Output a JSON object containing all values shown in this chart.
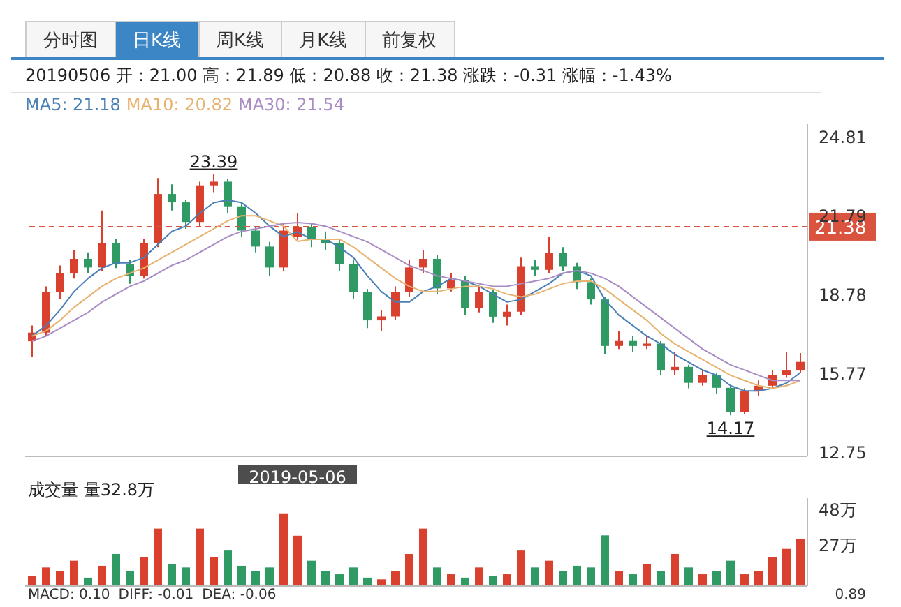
{
  "chart_data": [
    {
      "type": "candlestick",
      "subtitle": "20190506 开：21.00 高：21.89 低：20.88 收：21.38 涨跌：-0.31 涨幅：-1.43%",
      "annotations": [
        "分时图",
        "日K线",
        "周K线",
        "月K线",
        "前复权",
        {
          "text": "23.39",
          "y": 23.39
        },
        {
          "text": "14.17",
          "y": 14.17
        }
      ],
      "categories": [
        null,
        null,
        null,
        null,
        null,
        null,
        null,
        null,
        null,
        null,
        null,
        null,
        null,
        null,
        null,
        null,
        null,
        null,
        null,
        "2019-05-06",
        null,
        null,
        null,
        null,
        null,
        null,
        null,
        null,
        null,
        null,
        null,
        null,
        null,
        null,
        null,
        null,
        null,
        null,
        null,
        null,
        null,
        null,
        null,
        null,
        null,
        null,
        null,
        null,
        null,
        null,
        null,
        null,
        null,
        null,
        null,
        null
      ],
      "ohlc": [
        [
          17.0,
          17.6,
          16.4,
          17.33
        ],
        [
          17.33,
          19.1,
          17.2,
          18.88
        ],
        [
          18.88,
          19.9,
          18.6,
          19.6
        ],
        [
          19.6,
          20.5,
          19.4,
          20.15
        ],
        [
          20.15,
          20.4,
          19.6,
          19.82
        ],
        [
          19.82,
          22.0,
          19.7,
          20.76
        ],
        [
          20.76,
          20.9,
          19.8,
          19.96
        ],
        [
          19.96,
          20.1,
          19.2,
          19.49
        ],
        [
          19.49,
          20.9,
          19.4,
          20.76
        ],
        [
          20.76,
          23.24,
          20.6,
          22.63
        ],
        [
          22.63,
          23.0,
          22.0,
          22.31
        ],
        [
          22.31,
          22.4,
          21.3,
          21.56
        ],
        [
          21.56,
          23.1,
          21.4,
          22.96
        ],
        [
          22.96,
          23.39,
          22.7,
          23.1
        ],
        [
          23.1,
          23.2,
          21.9,
          22.16
        ],
        [
          22.16,
          22.3,
          21.0,
          21.23
        ],
        [
          21.23,
          21.4,
          20.4,
          20.62
        ],
        [
          20.62,
          20.8,
          19.5,
          19.82
        ],
        [
          19.82,
          21.5,
          19.7,
          21.23
        ],
        [
          21.0,
          21.89,
          20.88,
          21.38
        ],
        [
          21.38,
          21.5,
          20.6,
          20.9
        ],
        [
          20.9,
          21.2,
          20.5,
          20.76
        ],
        [
          20.76,
          20.9,
          19.7,
          19.96
        ],
        [
          19.96,
          20.1,
          18.6,
          18.88
        ],
        [
          18.88,
          19.0,
          17.5,
          17.8
        ],
        [
          17.8,
          18.2,
          17.4,
          17.95
        ],
        [
          17.95,
          19.1,
          17.8,
          18.88
        ],
        [
          18.88,
          20.1,
          18.7,
          19.82
        ],
        [
          19.82,
          20.5,
          19.6,
          20.15
        ],
        [
          20.15,
          20.3,
          18.8,
          19.02
        ],
        [
          19.02,
          19.6,
          18.9,
          19.35
        ],
        [
          19.35,
          19.5,
          18.0,
          18.27
        ],
        [
          18.27,
          19.1,
          18.1,
          18.88
        ],
        [
          18.88,
          19.0,
          17.7,
          17.94
        ],
        [
          17.94,
          18.4,
          17.6,
          18.13
        ],
        [
          18.13,
          20.2,
          18.0,
          19.87
        ],
        [
          19.87,
          20.1,
          19.5,
          19.73
        ],
        [
          19.73,
          21.0,
          19.6,
          20.38
        ],
        [
          20.38,
          20.6,
          19.7,
          19.87
        ],
        [
          19.87,
          20.0,
          19.0,
          19.26
        ],
        [
          19.26,
          19.4,
          18.4,
          18.6
        ],
        [
          18.6,
          18.7,
          16.5,
          16.82
        ],
        [
          16.82,
          17.4,
          16.7,
          17.01
        ],
        [
          17.01,
          17.2,
          16.6,
          16.82
        ],
        [
          16.82,
          17.2,
          16.7,
          16.91
        ],
        [
          16.91,
          17.0,
          15.7,
          15.88
        ],
        [
          15.88,
          16.6,
          15.7,
          16.02
        ],
        [
          16.02,
          16.1,
          15.2,
          15.41
        ],
        [
          15.41,
          15.9,
          15.3,
          15.7
        ],
        [
          15.7,
          15.8,
          15.0,
          15.22
        ],
        [
          15.22,
          15.3,
          14.17,
          14.29
        ],
        [
          14.29,
          15.2,
          14.2,
          15.08
        ],
        [
          15.08,
          15.5,
          14.9,
          15.3
        ],
        [
          15.3,
          15.9,
          15.2,
          15.7
        ],
        [
          15.7,
          16.6,
          15.6,
          15.88
        ],
        [
          15.88,
          16.55,
          15.8,
          16.21
        ]
      ],
      "colors": [
        "#d9412e",
        "#d9412e",
        "#d9412e",
        "#d9412e",
        "#2f9a63",
        "#d9412e",
        "#2f9a63",
        "#2f9a63",
        "#d9412e",
        "#d9412e",
        "#2f9a63",
        "#2f9a63",
        "#d9412e",
        "#d9412e",
        "#2f9a63",
        "#2f9a63",
        "#2f9a63",
        "#2f9a63",
        "#d9412e",
        "#d9412e",
        "#2f9a63",
        "#2f9a63",
        "#2f9a63",
        "#2f9a63",
        "#2f9a63",
        "#d9412e",
        "#d9412e",
        "#d9412e",
        "#d9412e",
        "#2f9a63",
        "#d9412e",
        "#2f9a63",
        "#d9412e",
        "#2f9a63",
        "#d9412e",
        "#d9412e",
        "#2f9a63",
        "#d9412e",
        "#2f9a63",
        "#2f9a63",
        "#2f9a63",
        "#2f9a63",
        "#d9412e",
        "#2f9a63",
        "#d9412e",
        "#2f9a63",
        "#d9412e",
        "#2f9a63",
        "#d9412e",
        "#2f9a63",
        "#2f9a63",
        "#d9412e",
        "#d9412e",
        "#d9412e",
        "#d9412e",
        "#d9412e"
      ],
      "series": [
        {
          "name": "MA5: 21.18",
          "type": "line",
          "color": "#4a7fb5",
          "values": [
            17.2,
            17.6,
            18.2,
            18.9,
            19.4,
            19.8,
            20.0,
            20.0,
            20.2,
            20.7,
            21.2,
            21.4,
            21.9,
            22.3,
            22.4,
            22.3,
            21.9,
            21.4,
            21.0,
            21.18,
            20.9,
            20.9,
            20.6,
            20.2,
            19.5,
            18.9,
            18.5,
            18.5,
            18.9,
            19.1,
            19.4,
            19.3,
            19.1,
            18.8,
            18.5,
            18.6,
            18.9,
            19.2,
            19.6,
            19.7,
            19.5,
            18.6,
            18.0,
            17.6,
            17.2,
            16.9,
            16.5,
            16.2,
            15.9,
            15.7,
            15.3,
            15.1,
            15.1,
            15.2,
            15.4,
            15.8
          ]
        },
        {
          "name": "MA10: 20.82",
          "type": "line",
          "color": "#e6b370",
          "values": [
            17.2,
            17.4,
            17.8,
            18.3,
            18.7,
            19.1,
            19.4,
            19.6,
            19.8,
            20.1,
            20.4,
            20.7,
            21.0,
            21.3,
            21.6,
            21.8,
            21.8,
            21.6,
            21.4,
            20.82,
            20.9,
            20.9,
            20.9,
            20.6,
            20.2,
            19.8,
            19.4,
            19.1,
            18.9,
            18.9,
            19.0,
            19.1,
            19.1,
            19.0,
            18.8,
            18.7,
            18.8,
            19.0,
            19.2,
            19.3,
            19.3,
            19.0,
            18.6,
            18.2,
            17.8,
            17.3,
            16.9,
            16.6,
            16.3,
            16.0,
            15.7,
            15.5,
            15.3,
            15.2,
            15.3,
            15.5
          ]
        },
        {
          "name": "MA30: 21.54",
          "type": "line",
          "color": "#a98cc4",
          "values": [
            17.0,
            17.2,
            17.5,
            17.8,
            18.1,
            18.5,
            18.8,
            19.1,
            19.3,
            19.6,
            19.9,
            20.1,
            20.4,
            20.7,
            21.0,
            21.2,
            21.3,
            21.4,
            21.5,
            21.54,
            21.5,
            21.4,
            21.2,
            21.0,
            20.8,
            20.5,
            20.2,
            19.9,
            19.7,
            19.5,
            19.4,
            19.3,
            19.2,
            19.1,
            19.1,
            19.2,
            19.3,
            19.4,
            19.6,
            19.7,
            19.6,
            19.4,
            19.1,
            18.7,
            18.3,
            17.9,
            17.5,
            17.1,
            16.7,
            16.4,
            16.1,
            15.9,
            15.7,
            15.5,
            15.5,
            15.5
          ]
        }
      ],
      "ylim": [
        12.6,
        25.3
      ],
      "yticks": [
        12.75,
        15.77,
        18.78,
        21.79,
        24.81
      ],
      "ref_lines": [
        {
          "axis": "y",
          "value": 21.38,
          "label": "21.38",
          "color": "#d9533f",
          "line_style": "dashed"
        }
      ],
      "legend": "top left",
      "tick_labels": "y"
    },
    {
      "type": "bar",
      "title": "成交量 量32.8万",
      "categories": [
        null,
        null,
        null,
        null,
        null,
        null,
        null,
        null,
        null,
        null,
        null,
        null,
        null,
        null,
        null,
        null,
        null,
        null,
        null,
        null,
        null,
        null,
        null,
        null,
        null,
        null,
        null,
        null,
        null,
        null,
        null,
        null,
        null,
        null,
        null,
        null,
        null,
        null,
        null,
        null,
        null,
        null,
        null,
        null,
        null,
        null,
        null,
        null,
        null,
        null,
        null,
        null,
        null,
        null,
        null,
        null
      ],
      "values": [
        9,
        14,
        12,
        18,
        8,
        15,
        22,
        12,
        20,
        37,
        16,
        14,
        37,
        20,
        24,
        15,
        12,
        14,
        46,
        32.8,
        18,
        12,
        10,
        14,
        8,
        7,
        12,
        22,
        37,
        14,
        10,
        8,
        14,
        9,
        10,
        24,
        14,
        18,
        12,
        15,
        14,
        33,
        12,
        10,
        16,
        12,
        22,
        14,
        10,
        12,
        18,
        10,
        12,
        20,
        25,
        31
      ],
      "colors": [
        "#d9412e",
        "#d9412e",
        "#d9412e",
        "#d9412e",
        "#2f9a63",
        "#d9412e",
        "#2f9a63",
        "#2f9a63",
        "#d9412e",
        "#d9412e",
        "#2f9a63",
        "#2f9a63",
        "#d9412e",
        "#d9412e",
        "#2f9a63",
        "#2f9a63",
        "#2f9a63",
        "#2f9a63",
        "#d9412e",
        "#d9412e",
        "#2f9a63",
        "#2f9a63",
        "#2f9a63",
        "#2f9a63",
        "#2f9a63",
        "#d9412e",
        "#d9412e",
        "#d9412e",
        "#d9412e",
        "#2f9a63",
        "#d9412e",
        "#2f9a63",
        "#d9412e",
        "#2f9a63",
        "#d9412e",
        "#d9412e",
        "#2f9a63",
        "#d9412e",
        "#2f9a63",
        "#2f9a63",
        "#2f9a63",
        "#2f9a63",
        "#d9412e",
        "#2f9a63",
        "#d9412e",
        "#2f9a63",
        "#d9412e",
        "#2f9a63",
        "#d9412e",
        "#2f9a63",
        "#2f9a63",
        "#d9412e",
        "#d9412e",
        "#d9412e",
        "#d9412e",
        "#d9412e"
      ],
      "ylim": [
        3,
        55
      ],
      "yticks": [
        {
          "value": 48,
          "label": "48万"
        },
        {
          "value": 27,
          "label": "27万"
        }
      ],
      "annotations": [
        "MACD: 0.10",
        "DIFF: -0.01",
        "DEA: -0.06",
        "0.89"
      ],
      "tick_labels": "y"
    }
  ]
}
